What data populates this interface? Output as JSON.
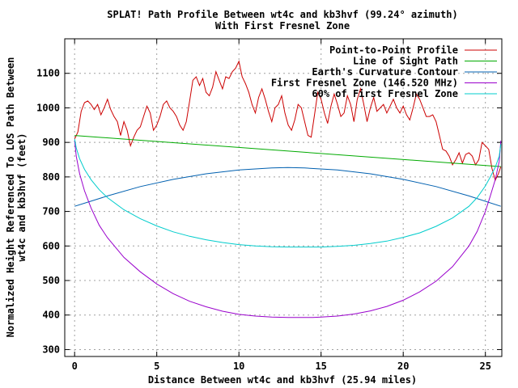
{
  "chart_data": {
    "type": "line",
    "title": "SPLAT! Path Profile Between wt4c and kb3hvf (99.24° azimuth)",
    "subtitle": "With First Fresnel Zone",
    "xlabel": "Distance Between wt4c and kb3hvf (25.94 miles)",
    "ylabel_line1": "Normalized Height Referenced To LOS Path Between",
    "ylabel_line2": "wt4c and kb3hvf (feet)",
    "xlim": [
      -0.6,
      26
    ],
    "ylim": [
      280,
      1200
    ],
    "x_ticks": [
      0,
      5,
      10,
      15,
      20,
      25
    ],
    "x_tick_labels": [
      "0",
      "5",
      "10",
      "15",
      "20",
      "25"
    ],
    "y_ticks": [
      300,
      400,
      500,
      600,
      700,
      800,
      900,
      1000,
      1100
    ],
    "y_tick_labels": [
      "300",
      "400",
      "500",
      "600",
      "700",
      "800",
      "900",
      "1000",
      "1100"
    ],
    "grid": true,
    "legend_position": "top-right",
    "series": [
      {
        "name": "Point-to-Point Profile",
        "color": "#cc0000",
        "x": [
          0,
          0.2,
          0.4,
          0.6,
          0.8,
          1.0,
          1.2,
          1.4,
          1.6,
          1.8,
          2.0,
          2.2,
          2.4,
          2.6,
          2.8,
          3.0,
          3.2,
          3.4,
          3.6,
          3.8,
          4.0,
          4.2,
          4.4,
          4.6,
          4.8,
          5.0,
          5.2,
          5.4,
          5.6,
          5.8,
          6.0,
          6.2,
          6.4,
          6.6,
          6.8,
          7.0,
          7.2,
          7.4,
          7.6,
          7.8,
          8.0,
          8.2,
          8.4,
          8.6,
          8.8,
          9.0,
          9.2,
          9.4,
          9.6,
          9.8,
          10.0,
          10.2,
          10.4,
          10.6,
          10.8,
          11.0,
          11.2,
          11.4,
          11.6,
          11.8,
          12.0,
          12.2,
          12.4,
          12.6,
          12.8,
          13.0,
          13.2,
          13.4,
          13.6,
          13.8,
          14.0,
          14.2,
          14.4,
          14.6,
          14.8,
          15.0,
          15.2,
          15.4,
          15.6,
          15.8,
          16.0,
          16.2,
          16.4,
          16.6,
          16.8,
          17.0,
          17.2,
          17.4,
          17.6,
          17.8,
          18.0,
          18.2,
          18.4,
          18.6,
          18.8,
          19.0,
          19.2,
          19.4,
          19.6,
          19.8,
          20.0,
          20.2,
          20.4,
          20.6,
          20.8,
          21.0,
          21.2,
          21.4,
          21.6,
          21.8,
          22.0,
          22.2,
          22.4,
          22.6,
          22.8,
          23.0,
          23.2,
          23.4,
          23.6,
          23.8,
          24.0,
          24.2,
          24.4,
          24.6,
          24.8,
          25.0,
          25.2,
          25.4,
          25.6,
          25.8,
          25.94
        ],
        "y": [
          910,
          930,
          990,
          1015,
          1020,
          1010,
          995,
          1010,
          980,
          1000,
          1025,
          995,
          975,
          960,
          920,
          960,
          935,
          890,
          915,
          935,
          945,
          975,
          1005,
          985,
          935,
          950,
          975,
          1010,
          1020,
          1000,
          990,
          975,
          950,
          935,
          960,
          1020,
          1080,
          1090,
          1065,
          1085,
          1045,
          1035,
          1060,
          1105,
          1080,
          1055,
          1090,
          1085,
          1105,
          1115,
          1135,
          1090,
          1070,
          1045,
          1010,
          985,
          1030,
          1055,
          1025,
          990,
          960,
          1000,
          1010,
          1035,
          985,
          950,
          935,
          965,
          1010,
          1000,
          960,
          920,
          915,
          980,
          1045,
          1025,
          985,
          955,
          1005,
          1040,
          1010,
          975,
          985,
          1035,
          1010,
          960,
          1025,
          1055,
          1010,
          960,
          1000,
          1030,
          990,
          1000,
          1010,
          985,
          1005,
          1025,
          1000,
          985,
          1005,
          980,
          965,
          1000,
          1040,
          1025,
          1000,
          975,
          975,
          980,
          960,
          920,
          880,
          875,
          860,
          835,
          850,
          870,
          840,
          865,
          870,
          860,
          835,
          850,
          900,
          890,
          880,
          825,
          790,
          810,
          830
        ]
      },
      {
        "name": "Line of Sight Path",
        "color": "#00aa00",
        "x": [
          0,
          25.94
        ],
        "y": [
          920,
          830
        ]
      },
      {
        "name": "Earth's Curvature Contour",
        "color": "#0060b0",
        "x": [
          0,
          2,
          4,
          6,
          8,
          10,
          12,
          12.97,
          14,
          16,
          18,
          20,
          22,
          24,
          25.94
        ],
        "y": [
          715,
          745,
          772,
          793,
          809,
          820,
          826,
          827,
          826,
          820,
          809,
          793,
          772,
          745,
          715
        ]
      },
      {
        "name": "First Fresnel Zone (146.520 MHz)",
        "color": "#9900cc",
        "x": [
          0,
          0.1,
          0.3,
          0.6,
          1,
          1.5,
          2,
          3,
          4,
          5,
          6,
          7,
          8,
          9,
          10,
          11,
          12,
          13,
          14,
          14.5,
          15,
          16,
          17,
          18,
          19,
          20,
          21,
          22,
          23,
          24,
          24.5,
          25,
          25.3,
          25.6,
          25.84,
          25.94
        ],
        "y": [
          905,
          860,
          810,
          760,
          710,
          660,
          624,
          567,
          525,
          490,
          462,
          440,
          424,
          411,
          402,
          397,
          394,
          393,
          393,
          393,
          394,
          397,
          403,
          412,
          425,
          443,
          467,
          498,
          540,
          600,
          642,
          700,
          745,
          792,
          845,
          905
        ]
      },
      {
        "name": "60% of First Fresnel Zone",
        "color": "#00cccc",
        "x": [
          0,
          0.1,
          0.3,
          0.6,
          1,
          1.5,
          2,
          3,
          4,
          5,
          6,
          7,
          8,
          9,
          10,
          11,
          12,
          13,
          14,
          14.5,
          15,
          16,
          17,
          18,
          19,
          20,
          21,
          22,
          23,
          24,
          24.5,
          25,
          25.3,
          25.6,
          25.84,
          25.94
        ],
        "y": [
          910,
          884,
          853,
          822,
          792,
          763,
          740,
          705,
          679,
          658,
          641,
          628,
          618,
          610,
          604,
          600,
          598,
          597,
          597,
          597,
          597,
          599,
          602,
          607,
          614,
          625,
          638,
          657,
          681,
          715,
          740,
          774,
          800,
          828,
          860,
          895
        ]
      }
    ]
  }
}
